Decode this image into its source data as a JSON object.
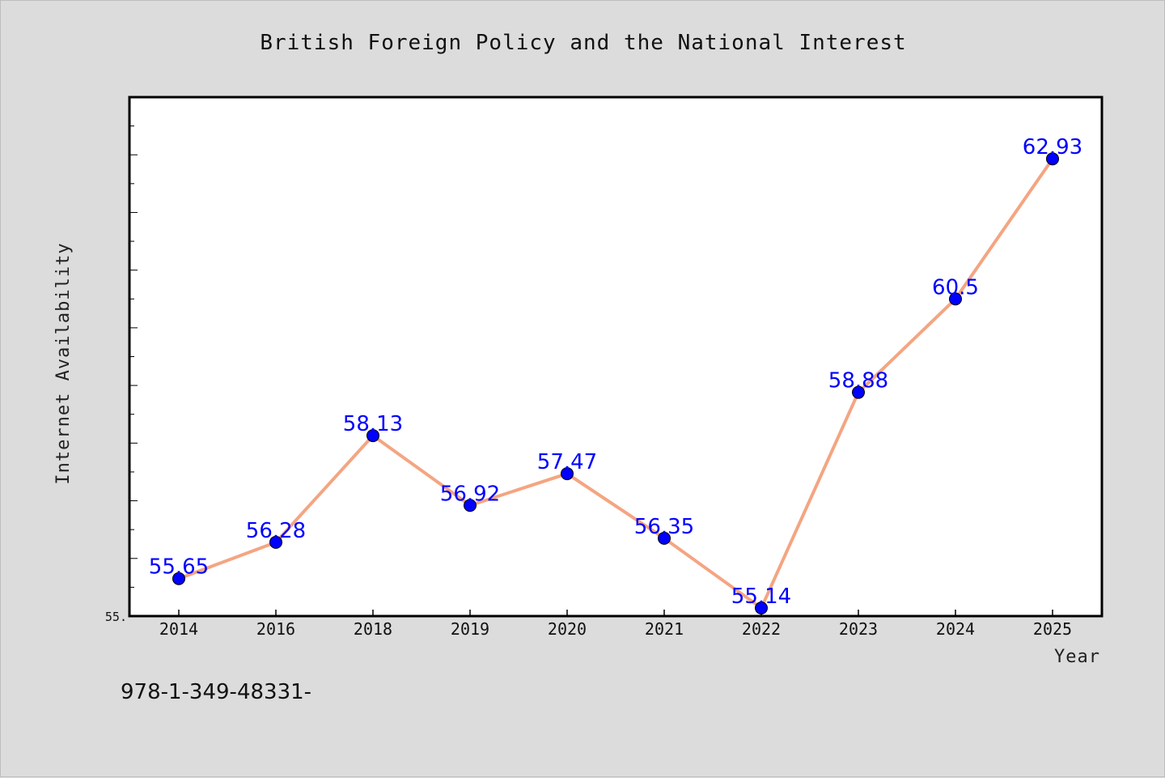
{
  "chart_data": {
    "type": "line",
    "title": "British Foreign Policy and the National Interest",
    "xlabel": "Year",
    "ylabel": "Internet Availability",
    "categories": [
      "2014",
      "2016",
      "2018",
      "2019",
      "2020",
      "2021",
      "2022",
      "2023",
      "2024",
      "2025"
    ],
    "series": [
      {
        "values": [
          55.65,
          56.28,
          58.13,
          56.92,
          57.47,
          56.35,
          55.14,
          58.88,
          60.5,
          62.93
        ],
        "data_labels": [
          "55.65",
          "56.28",
          "58.13",
          "56.92",
          "57.47",
          "56.35",
          "55.14",
          "58.88",
          "60.5",
          "62.93"
        ]
      }
    ],
    "ylim": [
      55.0,
      64.0
    ],
    "ytick_labels": [
      "55."
    ],
    "grid": false,
    "line_color": "#f4a582",
    "marker_color": "#0000ff",
    "label_color": "#0000ff"
  },
  "footer_note": "978-1-349-48331-"
}
